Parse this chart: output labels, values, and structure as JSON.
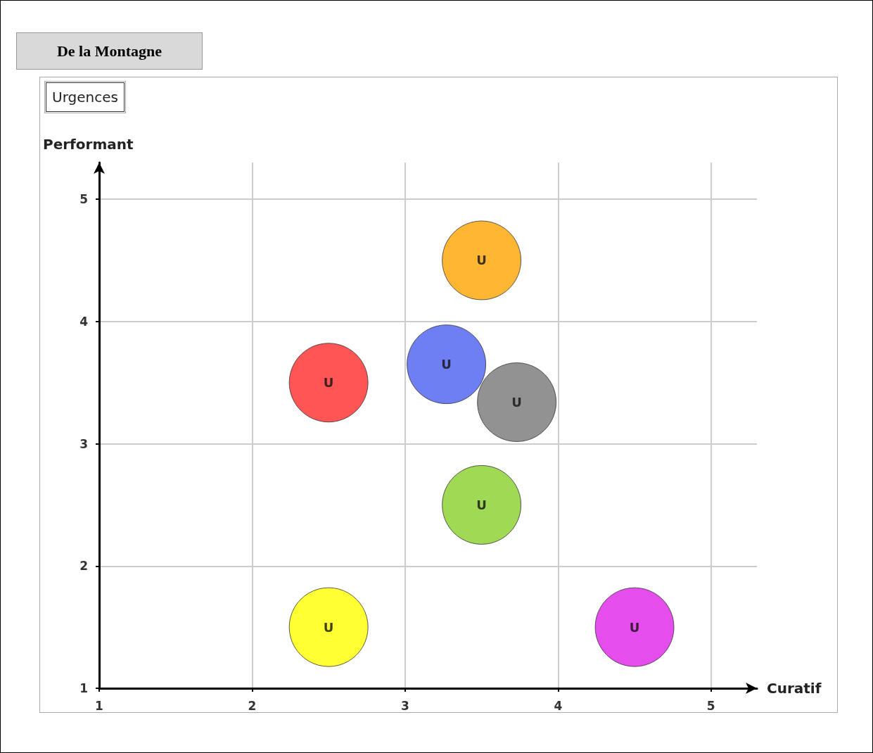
{
  "chart_data": {
    "type": "scatter",
    "title": "De la Montagne",
    "subtitle": "Urgences",
    "xlabel": "Curatif",
    "ylabel": "Performant",
    "x": [
      3.5,
      2.5,
      3.27,
      3.73,
      3.5,
      2.5,
      4.5
    ],
    "values": [
      4.5,
      3.5,
      3.65,
      3.34,
      2.5,
      1.5,
      1.5
    ],
    "colors": [
      "#ffa500",
      "#ff2a2a",
      "#4a5ef0",
      "#777777",
      "#88d12a",
      "#ffff00",
      "#e020e8"
    ],
    "value_labels": [
      "U",
      "U",
      "U",
      "U",
      "U",
      "U",
      "U"
    ],
    "xlim": [
      1,
      5.3
    ],
    "ylim": [
      1,
      5.3
    ],
    "xticks": [
      1,
      2,
      3,
      4,
      5
    ],
    "yticks": [
      1,
      2,
      3,
      4,
      5
    ],
    "grid": true,
    "marker": "circle"
  }
}
